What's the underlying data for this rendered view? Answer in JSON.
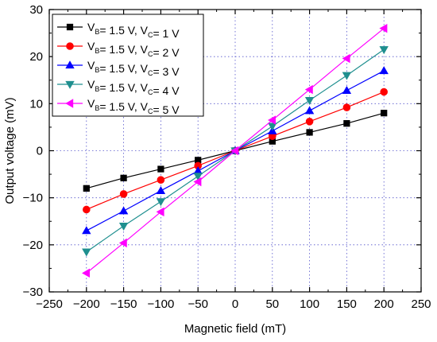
{
  "chart_data": {
    "type": "line",
    "title": "",
    "xlabel": "Magnetic field (mT)",
    "ylabel": "Output voltage (mV)",
    "xlim": [
      -250,
      250
    ],
    "ylim": [
      -30,
      30
    ],
    "xticks": [
      -250,
      -200,
      -150,
      -100,
      -50,
      0,
      50,
      100,
      150,
      200,
      250
    ],
    "yticks": [
      -30,
      -20,
      -10,
      0,
      10,
      20,
      30
    ],
    "grid": true,
    "legend_position": "top-left",
    "x": [
      -200,
      -150,
      -100,
      -50,
      0,
      50,
      100,
      150,
      200
    ],
    "series": [
      {
        "name": "V_B= 1.5 V, V_C= 1 V",
        "legend": {
          "a": "V",
          "a_sub": "B",
          "b": "= 1.5 V, V",
          "b_sub": "C",
          "c": "= 1 V"
        },
        "color": "#000000",
        "marker": "square",
        "values": [
          -8.0,
          -5.8,
          -3.9,
          -2.0,
          0,
          2.0,
          3.9,
          5.8,
          8.0
        ]
      },
      {
        "name": "V_B= 1.5 V, V_C= 2 V",
        "legend": {
          "a": "V",
          "a_sub": "B",
          "b": "= 1.5 V, V",
          "b_sub": "C",
          "c": "= 2 V"
        },
        "color": "#ff0000",
        "marker": "circle",
        "values": [
          -12.5,
          -9.2,
          -6.2,
          -3.2,
          0,
          3.1,
          6.2,
          9.2,
          12.5
        ]
      },
      {
        "name": "V_B= 1.5 V, V_C= 3 V",
        "legend": {
          "a": "V",
          "a_sub": "B",
          "b": "= 1.5 V, V",
          "b_sub": "C",
          "c": "= 3 V"
        },
        "color": "#0000ff",
        "marker": "triangle-up",
        "values": [
          -17.0,
          -12.8,
          -8.5,
          -4.3,
          0,
          4.2,
          8.5,
          12.8,
          17.0
        ]
      },
      {
        "name": "V_B= 1.5 V, V_C= 4 V",
        "legend": {
          "a": "V",
          "a_sub": "B",
          "b": "= 1.5 V, V",
          "b_sub": "C",
          "c": "= 4 V"
        },
        "color": "#1f8f8f",
        "marker": "triangle-down",
        "values": [
          -21.5,
          -16.0,
          -10.8,
          -5.4,
          0,
          5.2,
          10.7,
          16.0,
          21.5
        ]
      },
      {
        "name": "V_B= 1.5 V, V_C= 5 V",
        "legend": {
          "a": "V",
          "a_sub": "B",
          "b": "= 1.5 V, V",
          "b_sub": "C",
          "c": "= 5 V"
        },
        "color": "#ff00ff",
        "marker": "triangle-left",
        "values": [
          -26.0,
          -19.6,
          -13.0,
          -6.6,
          0,
          6.5,
          13.0,
          19.6,
          26.0
        ]
      }
    ]
  }
}
